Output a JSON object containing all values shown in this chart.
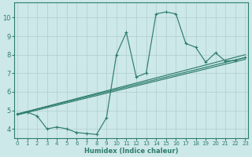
{
  "xlabel": "Humidex (Indice chaleur)",
  "bg_color": "#cde8e8",
  "line_color": "#2e7d6e",
  "grid_color": "#b0cecc",
  "x_ticks": [
    0,
    1,
    2,
    3,
    4,
    5,
    6,
    7,
    8,
    9,
    10,
    11,
    12,
    13,
    14,
    15,
    16,
    17,
    18,
    19,
    20,
    21,
    22,
    23
  ],
  "ylim": [
    3.5,
    10.8
  ],
  "xlim": [
    -0.3,
    23.3
  ],
  "yticks": [
    4,
    5,
    6,
    7,
    8,
    9,
    10
  ],
  "line1_x": [
    0,
    1,
    2,
    3,
    4,
    5,
    6,
    7,
    8,
    9,
    10,
    11,
    12,
    13,
    14,
    15,
    16,
    17,
    18,
    19,
    20,
    21,
    22,
    23
  ],
  "line1_y": [
    4.8,
    4.9,
    4.7,
    4.0,
    4.1,
    4.0,
    3.8,
    3.75,
    3.7,
    4.6,
    8.0,
    9.2,
    6.8,
    7.0,
    10.2,
    10.3,
    10.2,
    8.6,
    8.4,
    7.6,
    8.1,
    7.65,
    7.7,
    7.85
  ],
  "line2_x": [
    0,
    23
  ],
  "line2_y": [
    4.8,
    7.85
  ],
  "line3_x": [
    0,
    23
  ],
  "line3_y": [
    4.75,
    7.75
  ],
  "line4_x": [
    0,
    23
  ],
  "line4_y": [
    4.8,
    8.0
  ]
}
